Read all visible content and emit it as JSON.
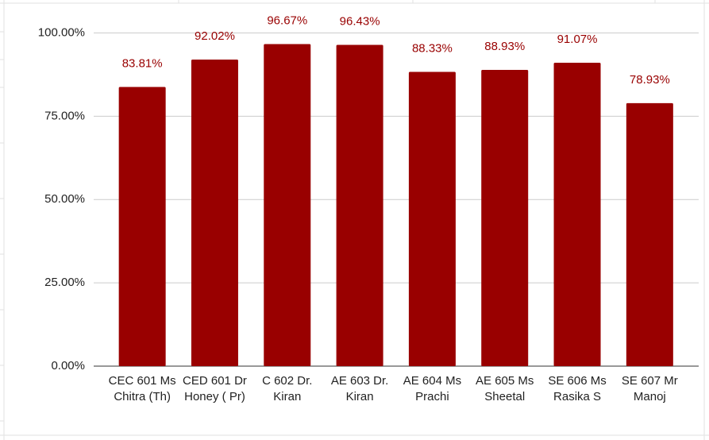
{
  "chart_data": {
    "type": "bar",
    "categories": [
      "CEC 601 Ms Chitra (Th)",
      "CED 601 Dr Honey ( Pr)",
      "C 602 Dr. Kiran",
      "AE 603 Dr. Kiran",
      "AE 604 Ms Prachi",
      "AE 605 Ms Sheetal",
      "SE 606 Ms Rasika S",
      "SE 607 Mr Manoj"
    ],
    "values": [
      83.81,
      92.02,
      96.67,
      96.43,
      88.33,
      88.93,
      91.07,
      78.93
    ],
    "value_labels": [
      "83.81%",
      "92.02%",
      "96.67%",
      "96.43%",
      "88.33%",
      "88.93%",
      "91.07%",
      "78.93%"
    ],
    "color": "#990000",
    "ylim": [
      0,
      108
    ],
    "yticks": [
      {
        "value": 0,
        "label": "0.00%"
      },
      {
        "value": 25,
        "label": "25.00%"
      },
      {
        "value": 50,
        "label": "50.00%"
      },
      {
        "value": 75,
        "label": "75.00%"
      },
      {
        "value": 100,
        "label": "100.00%"
      }
    ],
    "grid": true
  }
}
